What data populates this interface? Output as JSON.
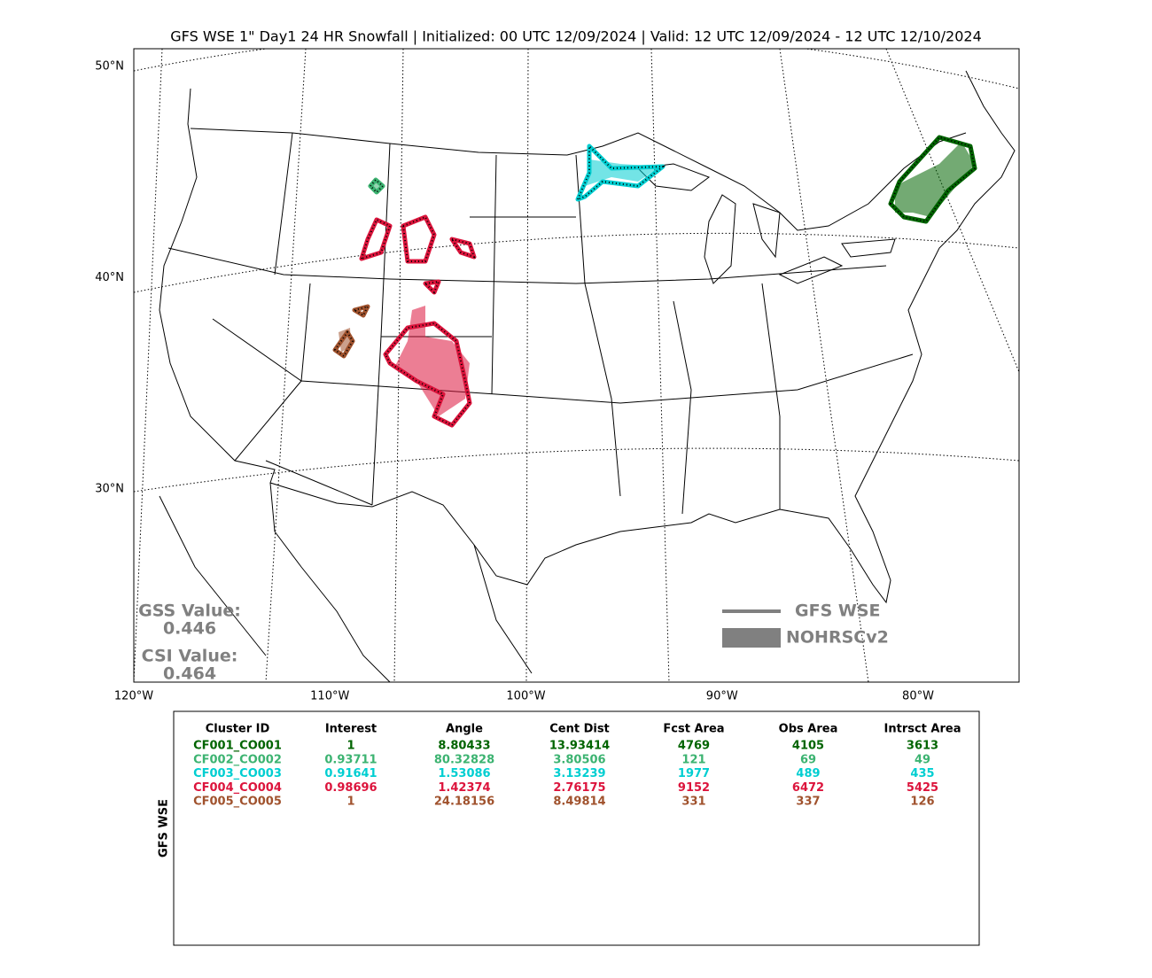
{
  "title": "GFS WSE 1\" Day1 24 HR Snowfall | Initialized: 00 UTC 12/09/2024 | Valid: 12 UTC 12/09/2024 - 12 UTC 12/10/2024",
  "map": {
    "lat_labels": [
      {
        "value": 50,
        "label": "50°N"
      },
      {
        "value": 40,
        "label": "40°N"
      },
      {
        "value": 30,
        "label": "30°N"
      }
    ],
    "lon_labels": [
      {
        "value": -120,
        "label": "120°W"
      },
      {
        "value": -110,
        "label": "110°W"
      },
      {
        "value": -100,
        "label": "100°W"
      },
      {
        "value": -90,
        "label": "90°W"
      },
      {
        "value": -80,
        "label": "80°W"
      }
    ],
    "gss_label": "GSS Value:",
    "gss": 0.446,
    "csi_label": "CSI Value:",
    "csi": 0.464,
    "legend": [
      {
        "name": "GFS WSE",
        "kind": "line",
        "color": "#808080"
      },
      {
        "name": "NOHRSCv2",
        "kind": "fill",
        "color": "#808080"
      }
    ]
  },
  "table": {
    "side_label": "GFS WSE",
    "header": [
      "Cluster ID",
      "Interest",
      "Angle",
      "Cent Dist",
      "Fcst Area",
      "Obs Area",
      "Intrsct Area"
    ],
    "rows": [
      {
        "color": "#006400",
        "cells": [
          "CF001_CO001",
          1,
          8.80433,
          13.93414,
          4769,
          4105,
          3613
        ]
      },
      {
        "color": "#3cb371",
        "cells": [
          "CF002_CO002",
          0.93711,
          80.32828,
          3.80506,
          121,
          69,
          49
        ]
      },
      {
        "color": "#00ced1",
        "cells": [
          "CF003_CO003",
          0.91641,
          1.53086,
          3.13239,
          1977,
          489,
          435
        ]
      },
      {
        "color": "#dc143c",
        "cells": [
          "CF004_CO004",
          0.98696,
          1.42374,
          2.76175,
          9152,
          6472,
          5425
        ]
      },
      {
        "color": "#a0522d",
        "cells": [
          "CF005_CO005",
          1,
          24.18156,
          8.49814,
          331,
          337,
          126
        ]
      }
    ]
  }
}
